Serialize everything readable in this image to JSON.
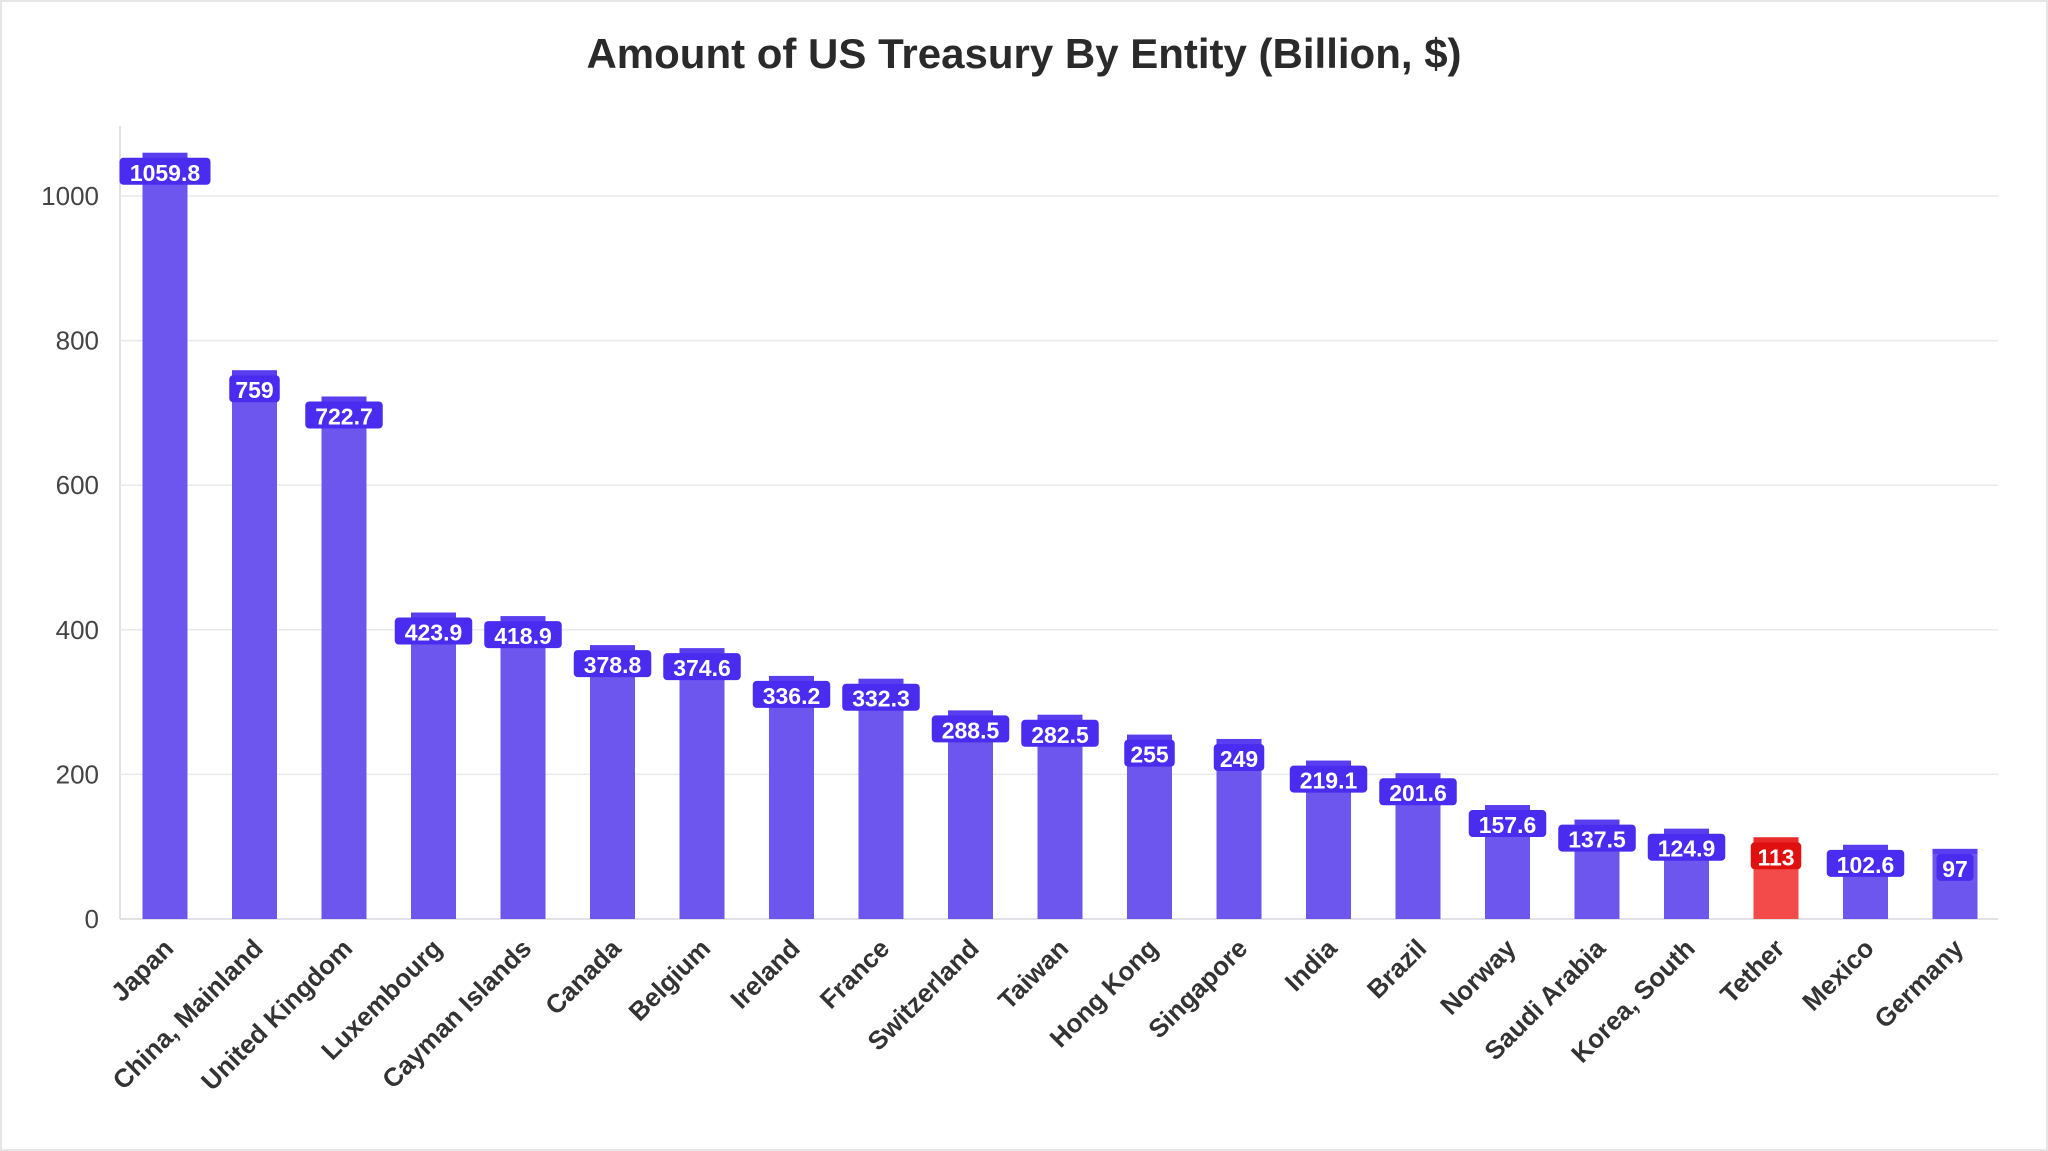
{
  "chart_data": {
    "type": "bar",
    "title": "Amount of US Treasury By Entity (Billion, $)",
    "xlabel": "",
    "ylabel": "",
    "ylim": [
      0,
      1100
    ],
    "yticks": [
      0,
      200,
      400,
      600,
      800,
      1000
    ],
    "grid": true,
    "legend": "none",
    "categories": [
      "Japan",
      "China, Mainland",
      "United Kingdom",
      "Luxembourg",
      "Cayman Islands",
      "Canada",
      "Belgium",
      "Ireland",
      "France",
      "Switzerland",
      "Taiwan",
      "Hong Kong",
      "Singapore",
      "India",
      "Brazil",
      "Norway",
      "Saudi Arabia",
      "Korea, South",
      "Tether",
      "Mexico",
      "Germany"
    ],
    "values": [
      1059.8,
      759,
      722.7,
      423.9,
      418.9,
      378.8,
      374.6,
      336.2,
      332.3,
      288.5,
      282.5,
      255,
      249,
      219.1,
      201.6,
      157.6,
      137.5,
      124.9,
      113,
      102.6,
      97
    ],
    "colors": [
      "#6c56ee",
      "#6c56ee",
      "#6c56ee",
      "#6c56ee",
      "#6c56ee",
      "#6c56ee",
      "#6c56ee",
      "#6c56ee",
      "#6c56ee",
      "#6c56ee",
      "#6c56ee",
      "#6c56ee",
      "#6c56ee",
      "#6c56ee",
      "#6c56ee",
      "#6c56ee",
      "#6c56ee",
      "#6c56ee",
      "#f34a4a",
      "#6c56ee",
      "#6c56ee"
    ],
    "label_bg_colors": [
      "#4a2cf0",
      "#4a2cf0",
      "#4a2cf0",
      "#4a2cf0",
      "#4a2cf0",
      "#4a2cf0",
      "#4a2cf0",
      "#4a2cf0",
      "#4a2cf0",
      "#4a2cf0",
      "#4a2cf0",
      "#4a2cf0",
      "#4a2cf0",
      "#4a2cf0",
      "#4a2cf0",
      "#4a2cf0",
      "#4a2cf0",
      "#4a2cf0",
      "#e01010",
      "#4a2cf0",
      "#4a2cf0"
    ]
  }
}
